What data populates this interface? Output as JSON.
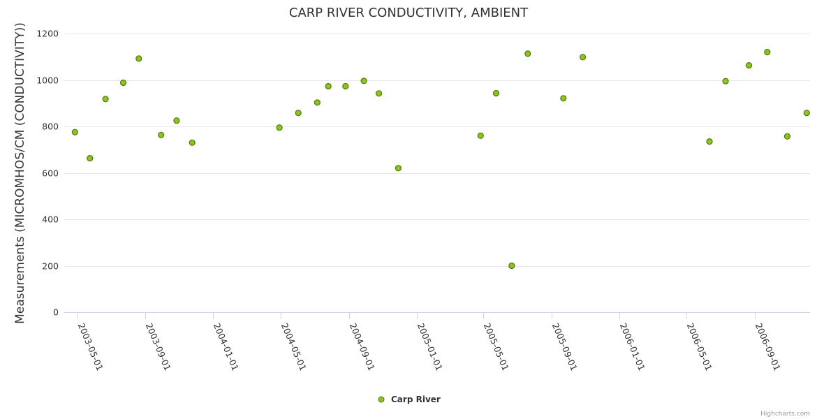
{
  "chart_data": {
    "type": "scatter",
    "title": "CARP RIVER CONDUCTIVITY, AMBIENT",
    "ylabel": "Measurements (MICROMHOS/CM (CONDUCTIVITY))",
    "xlabel": "",
    "ylim": [
      0,
      1200
    ],
    "yticks": [
      "0",
      "200",
      "400",
      "600",
      "800",
      "1000",
      "1200"
    ],
    "xticks": [
      {
        "date": "2003-05-01",
        "label": "2003-05-01"
      },
      {
        "date": "2003-09-01",
        "label": "2003-09-01"
      },
      {
        "date": "2004-01-01",
        "label": "2004-01-01"
      },
      {
        "date": "2004-05-01",
        "label": "2004-05-01"
      },
      {
        "date": "2004-09-01",
        "label": "2004-09-01"
      },
      {
        "date": "2005-01-01",
        "label": "2005-01-01"
      },
      {
        "date": "2005-05-01",
        "label": "2005-05-01"
      },
      {
        "date": "2005-09-01",
        "label": "2005-09-01"
      },
      {
        "date": "2006-01-01",
        "label": "2006-01-01"
      },
      {
        "date": "2006-05-01",
        "label": "2006-05-01"
      },
      {
        "date": "2006-09-01",
        "label": "2006-09-01"
      }
    ],
    "grid": true,
    "legend_position": "bottom-center",
    "series": [
      {
        "name": "Carp River",
        "color": "#8dc21f",
        "points": [
          {
            "x": "2003-04-27",
            "y": 775
          },
          {
            "x": "2003-05-24",
            "y": 663
          },
          {
            "x": "2003-06-21",
            "y": 918
          },
          {
            "x": "2003-07-23",
            "y": 988
          },
          {
            "x": "2003-08-20",
            "y": 1092
          },
          {
            "x": "2003-09-29",
            "y": 763
          },
          {
            "x": "2003-10-27",
            "y": 825
          },
          {
            "x": "2003-11-24",
            "y": 730
          },
          {
            "x": "2004-04-29",
            "y": 795
          },
          {
            "x": "2004-06-02",
            "y": 858
          },
          {
            "x": "2004-07-06",
            "y": 903
          },
          {
            "x": "2004-07-26",
            "y": 973
          },
          {
            "x": "2004-08-26",
            "y": 973
          },
          {
            "x": "2004-09-28",
            "y": 996
          },
          {
            "x": "2004-10-25",
            "y": 942
          },
          {
            "x": "2004-11-29",
            "y": 620
          },
          {
            "x": "2005-04-26",
            "y": 760
          },
          {
            "x": "2005-05-24",
            "y": 943
          },
          {
            "x": "2005-06-21",
            "y": 200
          },
          {
            "x": "2005-07-20",
            "y": 1113
          },
          {
            "x": "2005-09-22",
            "y": 921
          },
          {
            "x": "2005-10-27",
            "y": 1098
          },
          {
            "x": "2006-06-12",
            "y": 735
          },
          {
            "x": "2006-07-11",
            "y": 995
          },
          {
            "x": "2006-08-22",
            "y": 1063
          },
          {
            "x": "2006-09-24",
            "y": 1120
          },
          {
            "x": "2006-10-30",
            "y": 757
          },
          {
            "x": "2006-12-04",
            "y": 858
          }
        ]
      }
    ]
  },
  "credits": "Highcharts.com"
}
